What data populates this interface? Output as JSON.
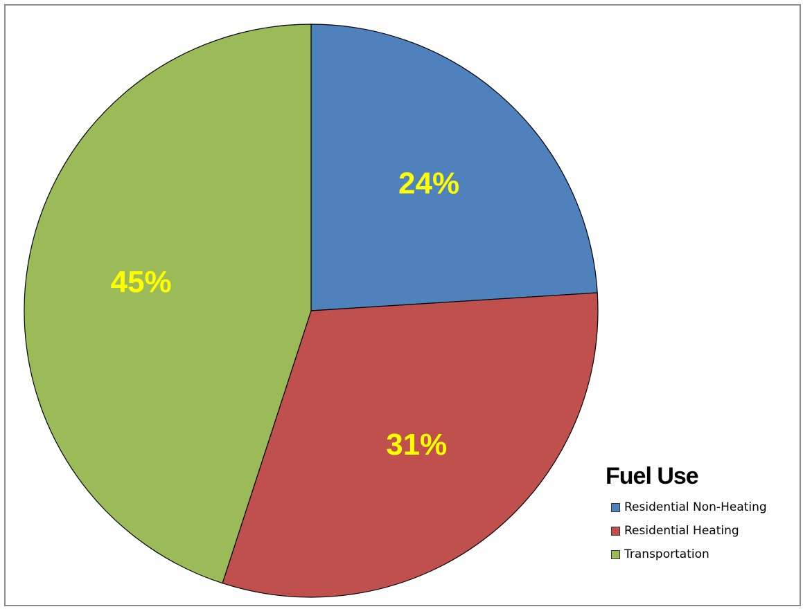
{
  "chart_data": {
    "type": "pie",
    "title": "Fuel Use",
    "legend_position": "bottom-right",
    "start_angle_deg": 0,
    "direction": "clockwise",
    "slices": [
      {
        "label": "Residential Non-Heating",
        "value": 24,
        "display": "24%",
        "color": "#4f81bd"
      },
      {
        "label": "Residential Heating",
        "value": 31,
        "display": "31%",
        "color": "#c0504d"
      },
      {
        "label": "Transportation",
        "value": 45,
        "display": "45%",
        "color": "#9bbb59"
      }
    ],
    "label_color": "#ffff00",
    "edge_color": "#000000"
  }
}
